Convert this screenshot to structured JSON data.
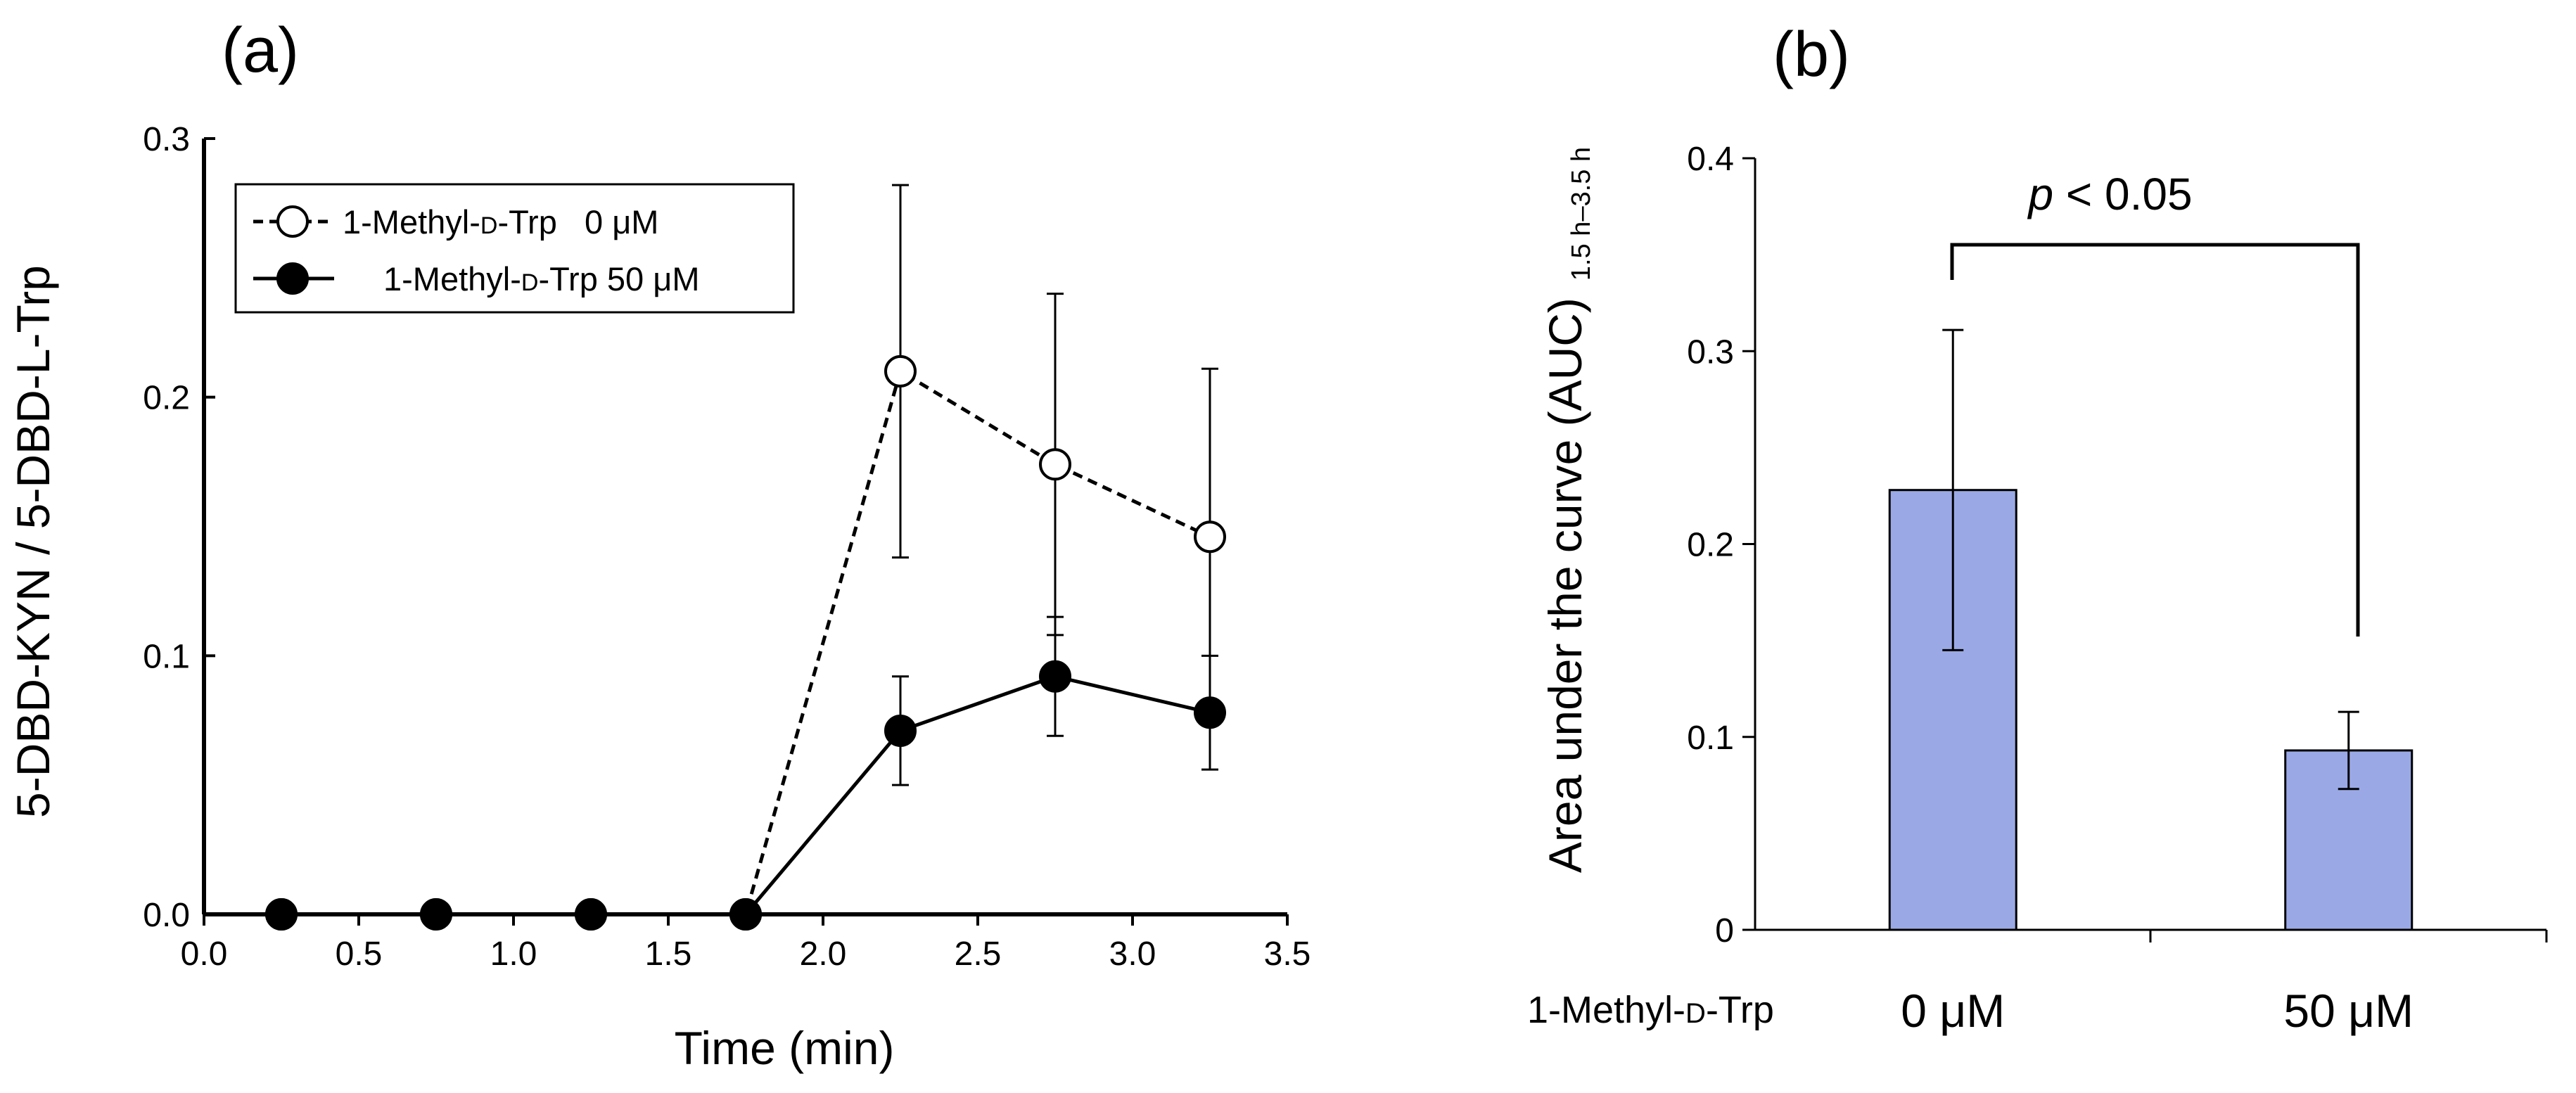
{
  "chart_data": [
    {
      "panel": "(a)",
      "type": "line",
      "xlabel": "Time (min)",
      "ylabel": "5-DBD-KYN / 5-DBD-L-Trp",
      "xlim": [
        0.0,
        3.5
      ],
      "ylim": [
        0.0,
        0.3
      ],
      "x_ticks": [
        "0.0",
        "0.5",
        "1.0",
        "1.5",
        "2.0",
        "2.5",
        "3.0",
        "3.5"
      ],
      "y_ticks": [
        "0.0",
        "0.1",
        "0.2",
        "0.3"
      ],
      "legend_position": "top-left",
      "series": [
        {
          "name": "1-Methyl-D-Trp 0 μM",
          "legend_label": {
            "pre": "1-Methyl-",
            "sc": "D",
            "post": "-Trp   0 μM"
          },
          "marker": "open-circle",
          "line_style": "dashed",
          "x": [
            0.25,
            0.75,
            1.25,
            1.75,
            2.25,
            2.75,
            3.25
          ],
          "y": [
            0.0,
            0.0,
            0.0,
            0.0,
            0.21,
            0.174,
            0.146
          ],
          "error": [
            0,
            0,
            0,
            0,
            0.072,
            0.066,
            0.065
          ]
        },
        {
          "name": "1-Methyl-D-Trp 50 μM",
          "legend_label": {
            "pre": "1-Methyl-",
            "sc": "D",
            "post": "-Trp 50 μM"
          },
          "marker": "filled-circle",
          "line_style": "solid",
          "x": [
            0.25,
            0.75,
            1.25,
            1.75,
            2.25,
            2.75,
            3.25
          ],
          "y": [
            0.0,
            0.0,
            0.0,
            0.0,
            0.071,
            0.092,
            0.078
          ],
          "error": [
            0,
            0,
            0,
            0,
            0.021,
            0.023,
            0.022
          ]
        }
      ]
    },
    {
      "panel": "(b)",
      "type": "bar",
      "ylabel": "Area under the curve (AUC)",
      "ylabel_subscript": "1.5 h–3.5 h",
      "ylim": [
        0,
        0.4
      ],
      "y_ticks": [
        "0",
        "0.1",
        "0.2",
        "0.3",
        "0.4"
      ],
      "group_label": {
        "pre": "1-Methyl-",
        "sc": "D",
        "post": "-Trp"
      },
      "categories": [
        "0 μM",
        "50 μM"
      ],
      "values": [
        0.228,
        0.093
      ],
      "errors": [
        0.083,
        0.02
      ],
      "bar_color": "#9aa9e6",
      "significance": {
        "p_italic": "p",
        "rest": " < 0.05"
      }
    }
  ]
}
